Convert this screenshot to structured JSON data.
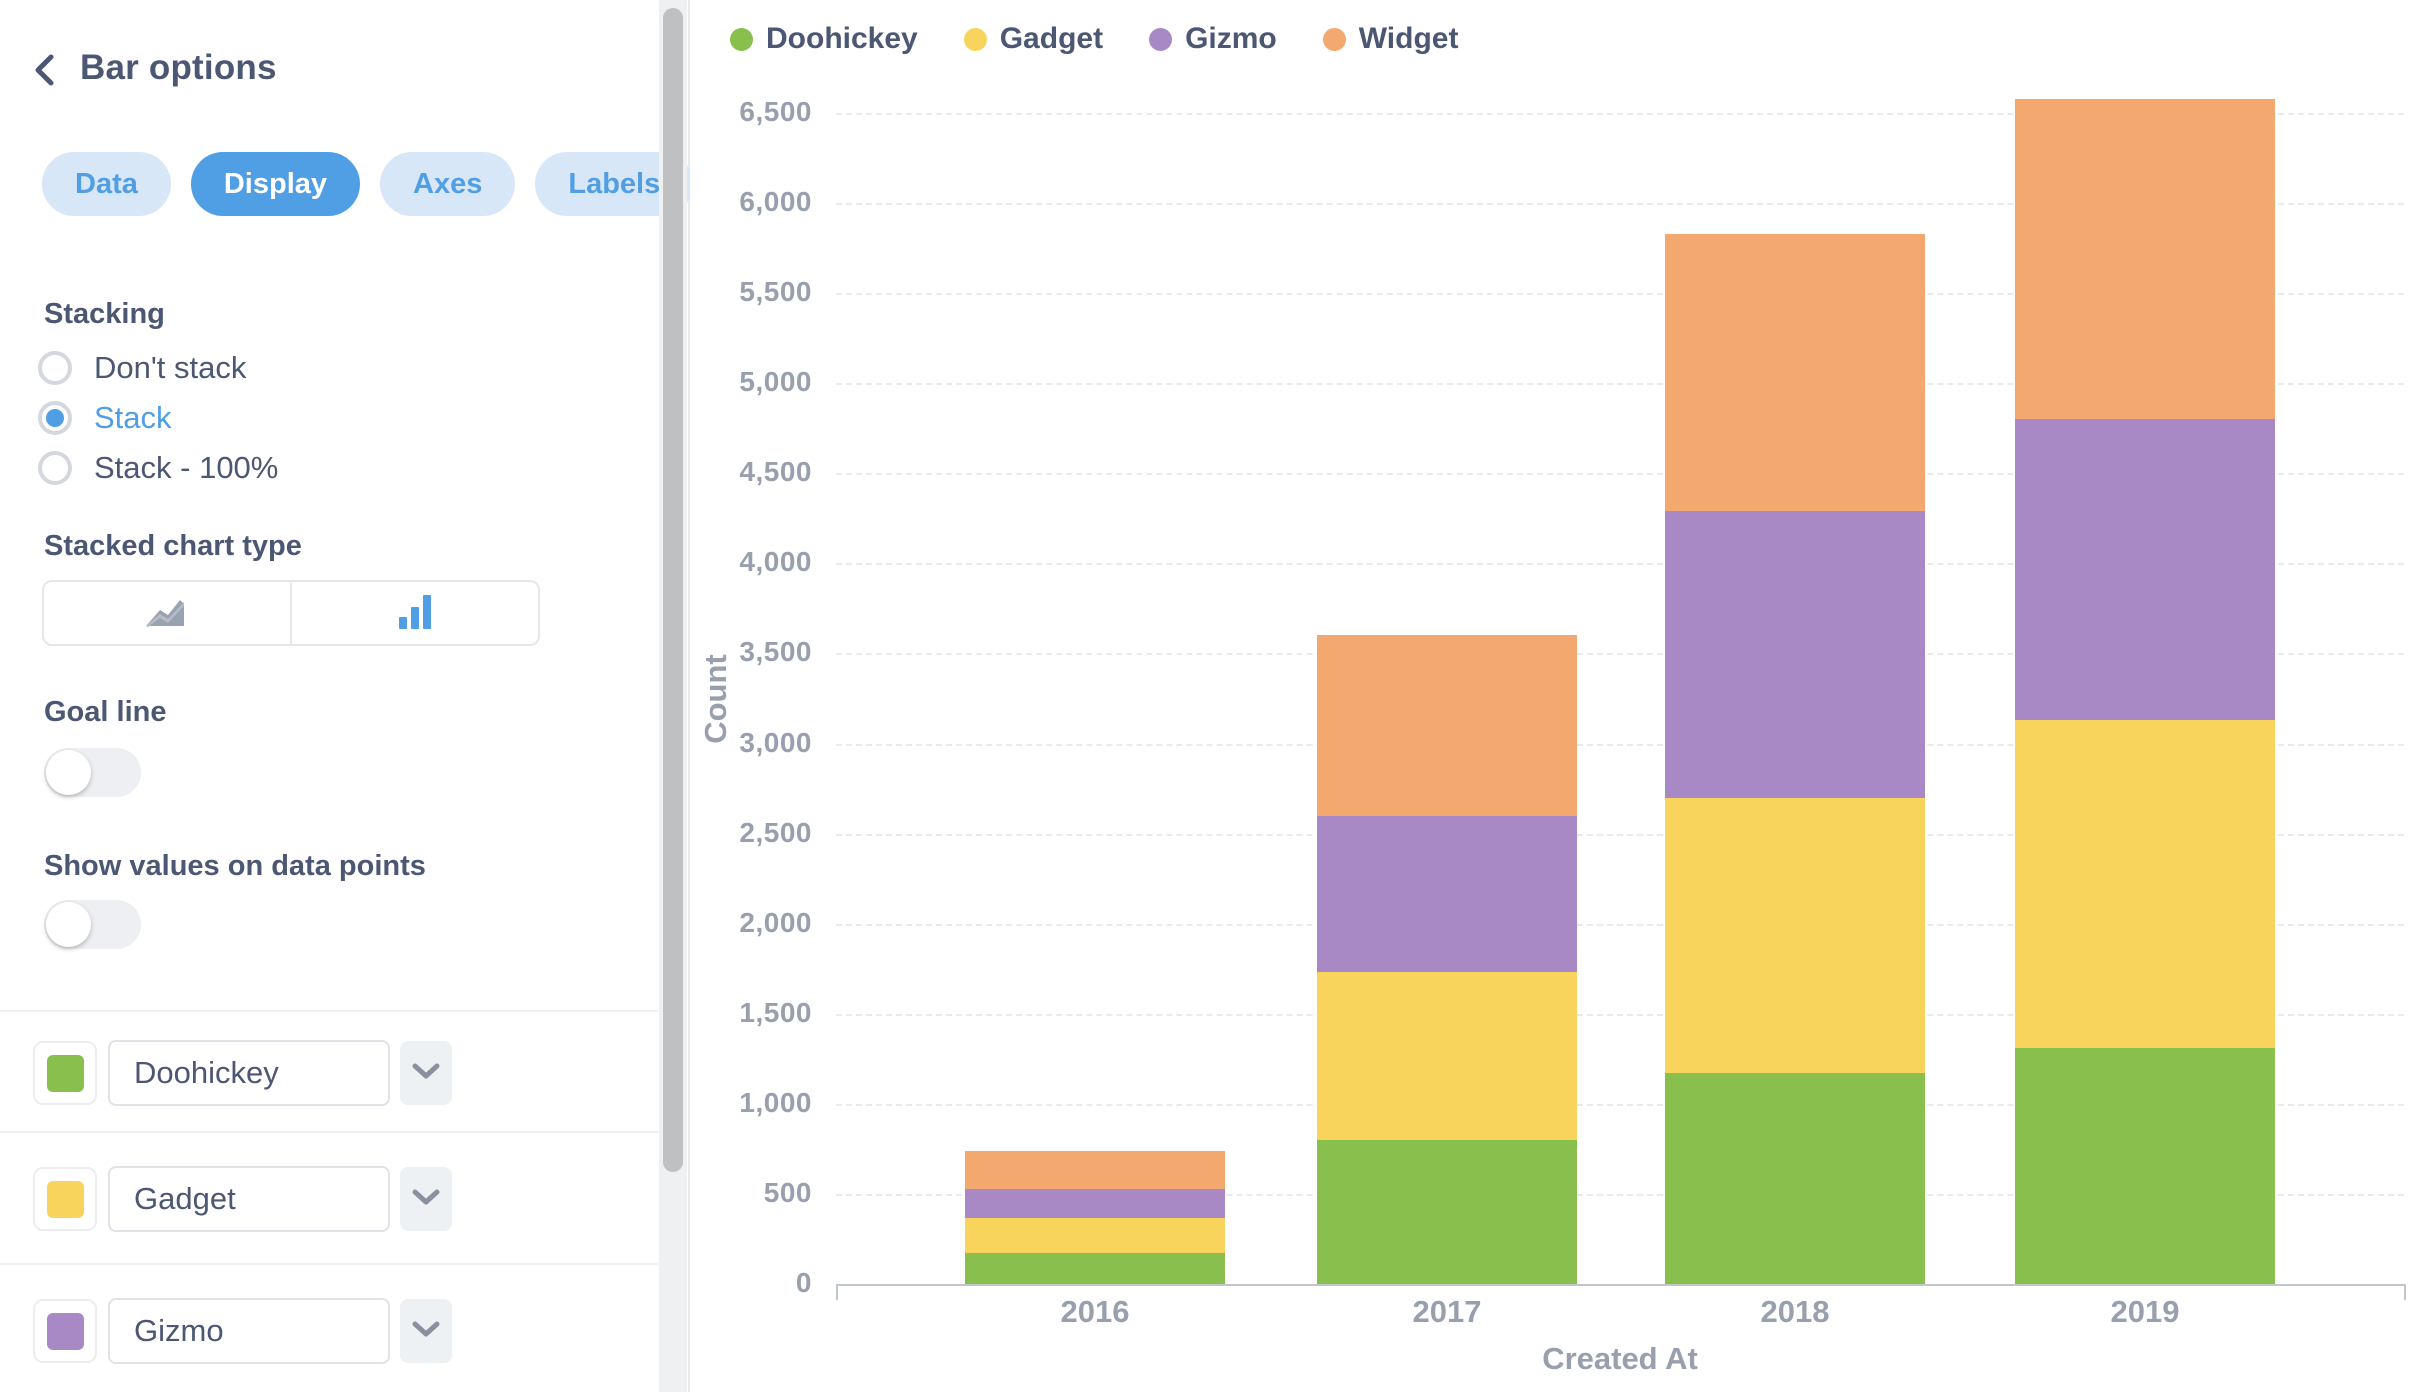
{
  "sidebar": {
    "title": "Bar options",
    "tabs": [
      {
        "label": "Data",
        "active": false
      },
      {
        "label": "Display",
        "active": true
      },
      {
        "label": "Axes",
        "active": false
      },
      {
        "label": "Labels",
        "active": false
      }
    ],
    "stacking": {
      "heading": "Stacking",
      "options": [
        {
          "label": "Don't stack",
          "selected": false
        },
        {
          "label": "Stack",
          "selected": true
        },
        {
          "label": "Stack - 100%",
          "selected": false
        }
      ]
    },
    "stacked_chart_type": {
      "heading": "Stacked chart type",
      "options": [
        {
          "name": "area",
          "selected": false
        },
        {
          "name": "bar",
          "selected": true
        }
      ]
    },
    "goal_line": {
      "heading": "Goal line",
      "enabled": false
    },
    "show_values": {
      "heading": "Show values on data points",
      "enabled": false
    },
    "series_rows": [
      {
        "label": "Doohickey",
        "color": "#88BF4D"
      },
      {
        "label": "Gadget",
        "color": "#F9D45C"
      },
      {
        "label": "Gizmo",
        "color": "#A989C5"
      }
    ]
  },
  "chart_data": {
    "type": "bar",
    "stacked": true,
    "categories": [
      "2016",
      "2017",
      "2018",
      "2019"
    ],
    "series": [
      {
        "name": "Doohickey",
        "color": "#88BF4D",
        "values": [
          170,
          800,
          1170,
          1310
        ]
      },
      {
        "name": "Gadget",
        "color": "#F9D45C",
        "values": [
          195,
          930,
          1530,
          1820
        ]
      },
      {
        "name": "Gizmo",
        "color": "#A989C5",
        "values": [
          160,
          870,
          1590,
          1670
        ]
      },
      {
        "name": "Widget",
        "color": "#F2A86F",
        "values": [
          215,
          1000,
          1540,
          1775
        ]
      }
    ],
    "xlabel": "Created At",
    "ylabel": "Count",
    "ylim": [
      0,
      6500
    ],
    "ytick_step": 500,
    "grid": "horizontal-dashed",
    "legend_position": "top-left"
  },
  "colors": {
    "brand": "#509EE3",
    "text_dark": "#4C5773",
    "text_gray": "#98A0AE",
    "pill_bg": "#D7E7F7",
    "border": "#E4E7EB",
    "divider": "#F0F0F1"
  }
}
